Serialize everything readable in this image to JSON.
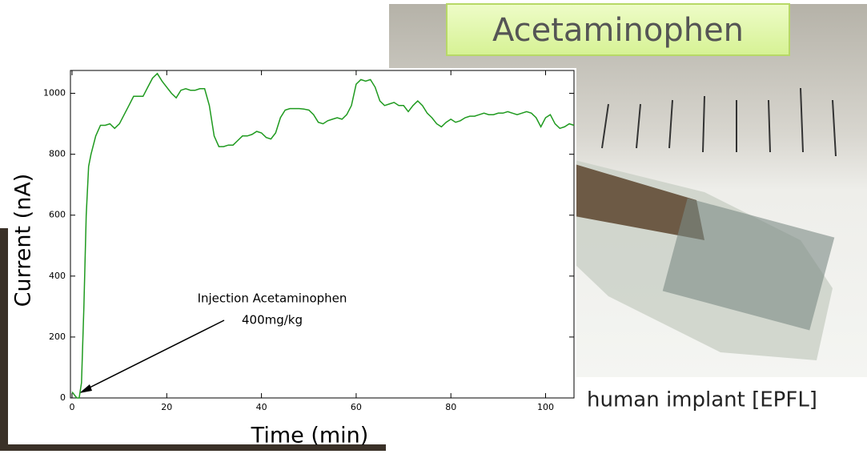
{
  "slide": {
    "label_box": "Acetaminophen",
    "caption": "human implant [EPFL]"
  },
  "chart_data": {
    "type": "line",
    "xlabel": "Time (min)",
    "ylabel": "Current (nA)",
    "annotation": [
      "Injection Acetaminophen",
      "400mg/kg"
    ],
    "x": [
      0,
      1,
      1.5,
      2,
      2.5,
      3,
      3.5,
      4,
      5,
      6,
      7,
      8,
      9,
      10,
      11,
      12,
      13,
      14,
      15,
      16,
      17,
      18,
      19,
      20,
      21,
      22,
      23,
      24,
      25,
      26,
      27,
      28,
      29,
      30,
      31,
      32,
      33,
      34,
      35,
      36,
      37,
      38,
      39,
      40,
      41,
      42,
      43,
      44,
      45,
      46,
      47,
      48,
      49,
      50,
      51,
      52,
      53,
      54,
      55,
      56,
      57,
      58,
      59,
      60,
      61,
      62,
      63,
      64,
      65,
      66,
      67,
      68,
      69,
      70,
      71,
      72,
      73,
      74,
      75,
      76,
      77,
      78,
      79,
      80,
      81,
      82,
      83,
      84,
      85,
      86,
      87,
      88,
      89,
      90,
      91,
      92,
      93,
      94,
      95,
      96,
      97,
      98,
      99,
      100,
      101,
      102,
      103,
      104,
      105,
      106
    ],
    "series": [
      {
        "color": "#1f9a1f",
        "values": [
          20,
          0,
          0,
          50,
          300,
          600,
          760,
          800,
          860,
          895,
          895,
          900,
          885,
          900,
          930,
          960,
          990,
          990,
          990,
          1020,
          1050,
          1065,
          1040,
          1020,
          1000,
          985,
          1010,
          1015,
          1010,
          1010,
          1015,
          1015,
          960,
          860,
          825,
          825,
          830,
          830,
          845,
          860,
          860,
          865,
          875,
          870,
          855,
          850,
          870,
          920,
          945,
          950,
          950,
          950,
          948,
          945,
          930,
          905,
          900,
          910,
          915,
          920,
          915,
          930,
          960,
          1030,
          1045,
          1040,
          1045,
          1020,
          975,
          960,
          965,
          970,
          960,
          960,
          940,
          960,
          975,
          960,
          935,
          920,
          900,
          890,
          905,
          915,
          905,
          910,
          920,
          925,
          925,
          930,
          935,
          930,
          930,
          935,
          935,
          940,
          935,
          930,
          935,
          940,
          935,
          920,
          890,
          920,
          930,
          900,
          885,
          890,
          900,
          895
        ]
      }
    ],
    "xlim": [
      0,
      106
    ],
    "ylim": [
      0,
      1075
    ],
    "xticks": [
      0,
      20,
      40,
      60,
      80,
      100
    ],
    "yticks": [
      0,
      200,
      400,
      600,
      800,
      1000
    ]
  }
}
